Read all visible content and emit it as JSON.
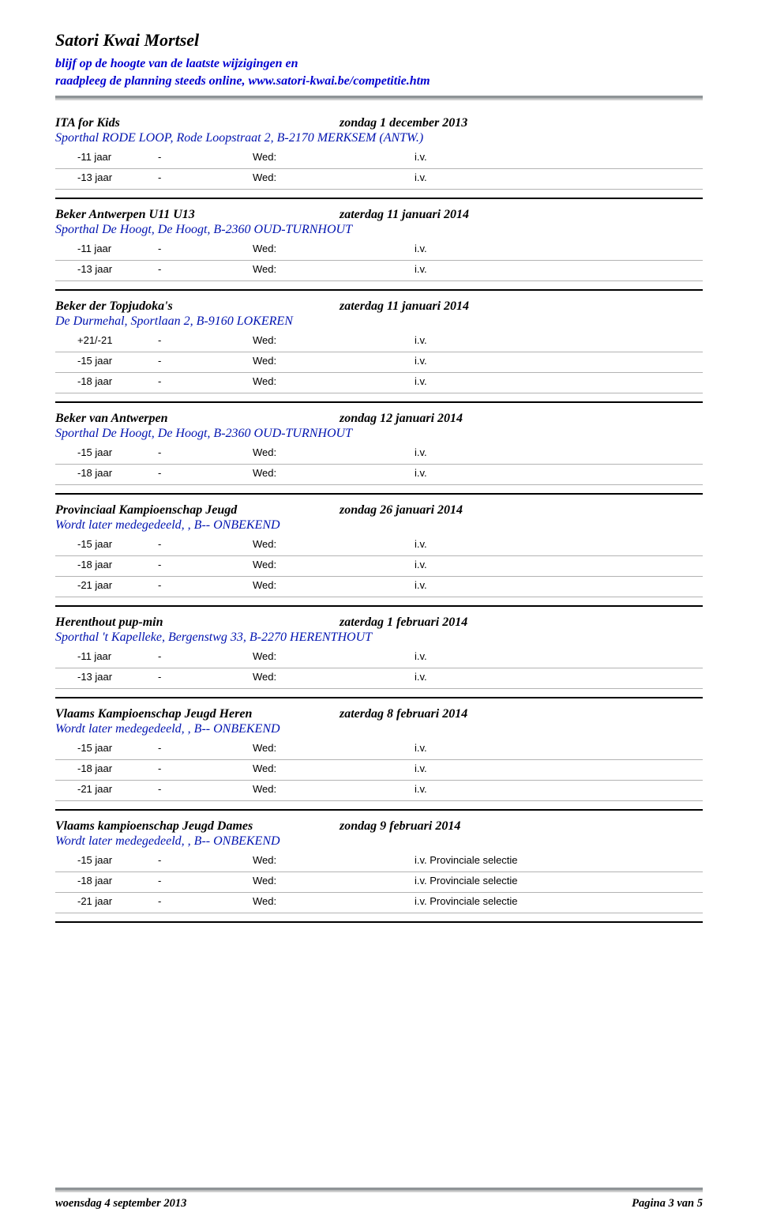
{
  "site_title": "Satori Kwai Mortsel",
  "tagline_line1": "blijf op de hoogte van de laatste wijzigingen en",
  "tagline_line2": "raadpleeg de planning steeds online, www.satori-kwai.be/competitie.htm",
  "colors": {
    "accent_blue": "#0000d0",
    "venue_blue": "#0013b0",
    "hr_gray_dark": "#8f9497",
    "hr_gray_light": "#cfcfcf",
    "row_divider": "#b3b3b3"
  },
  "col_labels": {
    "wed": "Wed:",
    "dash": "-"
  },
  "events": [
    {
      "title": "ITA for Kids",
      "date": "zondag 1 december 2013",
      "venue": "Sporthal RODE LOOP, Rode Loopstraat 2,  B-2170 MERKSEM (ANTW.)",
      "rows": [
        {
          "age": "-11 jaar",
          "note": "i.v."
        },
        {
          "age": "-13 jaar",
          "note": "i.v."
        }
      ]
    },
    {
      "title": "Beker Antwerpen  U11 U13",
      "date": "zaterdag 11 januari 2014",
      "venue": "Sporthal De Hoogt, De Hoogt,  B-2360 OUD-TURNHOUT",
      "rows": [
        {
          "age": "-11 jaar",
          "note": "i.v."
        },
        {
          "age": "-13 jaar",
          "note": "i.v."
        }
      ]
    },
    {
      "title": "Beker der Topjudoka's",
      "date": "zaterdag 11 januari 2014",
      "venue": "De Durmehal, Sportlaan 2,  B-9160 LOKEREN",
      "rows": [
        {
          "age": "+21/-21",
          "note": "i.v."
        },
        {
          "age": "-15 jaar",
          "note": "i.v."
        },
        {
          "age": "-18 jaar",
          "note": "i.v."
        }
      ]
    },
    {
      "title": "Beker van Antwerpen",
      "date": "zondag 12 januari 2014",
      "venue": "Sporthal De Hoogt, De Hoogt,  B-2360 OUD-TURNHOUT",
      "rows": [
        {
          "age": "-15 jaar",
          "note": "i.v."
        },
        {
          "age": "-18 jaar",
          "note": "i.v."
        }
      ]
    },
    {
      "title": "Provinciaal Kampioenschap Jeugd",
      "date": "zondag 26 januari 2014",
      "venue": "Wordt later medegedeeld, ,  B-- ONBEKEND",
      "rows": [
        {
          "age": "-15 jaar",
          "note": "i.v."
        },
        {
          "age": "-18 jaar",
          "note": "i.v."
        },
        {
          "age": "-21 jaar",
          "note": "i.v."
        }
      ]
    },
    {
      "title": "Herenthout pup-min",
      "date": "zaterdag 1 februari 2014",
      "venue": "Sporthal 't Kapelleke, Bergenstwg 33,  B-2270 HERENTHOUT",
      "rows": [
        {
          "age": "-11 jaar",
          "note": "i.v."
        },
        {
          "age": "-13 jaar",
          "note": "i.v."
        }
      ]
    },
    {
      "title": "Vlaams Kampioenschap Jeugd Heren",
      "date": "zaterdag 8 februari 2014",
      "venue": "Wordt later medegedeeld, ,  B-- ONBEKEND",
      "rows": [
        {
          "age": "-15 jaar",
          "note": "i.v."
        },
        {
          "age": "-18 jaar",
          "note": "i.v."
        },
        {
          "age": "-21 jaar",
          "note": "i.v."
        }
      ]
    },
    {
      "title": "Vlaams kampioenschap Jeugd Dames",
      "date": "zondag 9 februari 2014",
      "venue": "Wordt later medegedeeld, ,  B-- ONBEKEND",
      "rows": [
        {
          "age": "-15 jaar",
          "note": "i.v. Provinciale selectie"
        },
        {
          "age": "-18 jaar",
          "note": "i.v. Provinciale selectie"
        },
        {
          "age": "-21 jaar",
          "note": "i.v. Provinciale selectie"
        }
      ]
    }
  ],
  "footer": {
    "left": "woensdag 4 september 2013",
    "right": "Pagina 3 van 5"
  }
}
